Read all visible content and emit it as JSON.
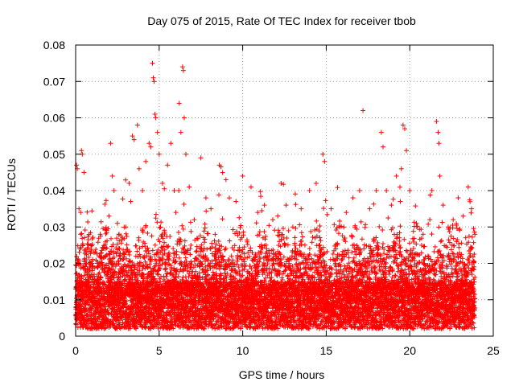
{
  "chart_data": {
    "type": "scatter",
    "title": "Day 075 of 2015, Rate Of TEC Index for receiver tbob",
    "xlabel": "GPS time / hours",
    "ylabel": "ROTI / TECUs",
    "xlim": [
      0,
      25
    ],
    "ylim": [
      0,
      0.08
    ],
    "xticks": [
      "0",
      "5",
      "10",
      "15",
      "20",
      "25"
    ],
    "yticks": [
      "0",
      "0.01",
      "0.02",
      "0.03",
      "0.04",
      "0.05",
      "0.06",
      "0.07",
      "0.08"
    ],
    "grid": true,
    "marker": "+",
    "color": "#ff0000",
    "x_extent_hours": [
      0,
      23.9
    ],
    "series": [
      {
        "points": [
          [
            0.05,
            0.047
          ],
          [
            0.1,
            0.046
          ],
          [
            0.2,
            0.035
          ],
          [
            0.3,
            0.034
          ],
          [
            0.35,
            0.051
          ],
          [
            0.4,
            0.05
          ],
          [
            0.5,
            0.045
          ],
          [
            0.3,
            0.028
          ],
          [
            0.4,
            0.025
          ],
          [
            0.6,
            0.02
          ],
          [
            0.8,
            0.015
          ],
          [
            1.0,
            0.018
          ],
          [
            1.3,
            0.02
          ],
          [
            1.5,
            0.016
          ],
          [
            2.0,
            0.033
          ],
          [
            2.1,
            0.053
          ],
          [
            2.2,
            0.044
          ],
          [
            2.3,
            0.04
          ],
          [
            2.5,
            0.031
          ],
          [
            2.6,
            0.028
          ],
          [
            2.8,
            0.027
          ],
          [
            3.0,
            0.03
          ],
          [
            3.2,
            0.042
          ],
          [
            3.3,
            0.037
          ],
          [
            3.4,
            0.055
          ],
          [
            3.5,
            0.054
          ],
          [
            3.7,
            0.058
          ],
          [
            3.8,
            0.046
          ],
          [
            4.0,
            0.04
          ],
          [
            4.2,
            0.048
          ],
          [
            4.4,
            0.053
          ],
          [
            4.5,
            0.052
          ],
          [
            4.6,
            0.075
          ],
          [
            4.65,
            0.071
          ],
          [
            4.7,
            0.07
          ],
          [
            4.75,
            0.061
          ],
          [
            4.8,
            0.06
          ],
          [
            4.9,
            0.056
          ],
          [
            5.0,
            0.05
          ],
          [
            5.2,
            0.042
          ],
          [
            5.5,
            0.047
          ],
          [
            5.7,
            0.053
          ],
          [
            5.9,
            0.04
          ],
          [
            6.0,
            0.034
          ],
          [
            6.2,
            0.064
          ],
          [
            6.3,
            0.056
          ],
          [
            6.4,
            0.074
          ],
          [
            6.45,
            0.073
          ],
          [
            6.5,
            0.06
          ],
          [
            6.6,
            0.05
          ],
          [
            6.8,
            0.041
          ],
          [
            7.1,
            0.032
          ],
          [
            7.5,
            0.049
          ],
          [
            7.8,
            0.038
          ],
          [
            8.1,
            0.035
          ],
          [
            8.6,
            0.047
          ],
          [
            9.0,
            0.043
          ],
          [
            9.2,
            0.038
          ],
          [
            9.6,
            0.037
          ],
          [
            10.0,
            0.044
          ],
          [
            10.5,
            0.041
          ],
          [
            10.9,
            0.034
          ],
          [
            11.3,
            0.036
          ],
          [
            11.8,
            0.032
          ],
          [
            12.3,
            0.042
          ],
          [
            12.6,
            0.036
          ],
          [
            13.0,
            0.03
          ],
          [
            13.5,
            0.035
          ],
          [
            14.0,
            0.04
          ],
          [
            14.4,
            0.042
          ],
          [
            14.8,
            0.05
          ],
          [
            14.9,
            0.048
          ],
          [
            15.3,
            0.035
          ],
          [
            15.8,
            0.03
          ],
          [
            16.2,
            0.034
          ],
          [
            16.6,
            0.038
          ],
          [
            17.0,
            0.04
          ],
          [
            17.2,
            0.062
          ],
          [
            17.6,
            0.035
          ],
          [
            18.0,
            0.04
          ],
          [
            18.3,
            0.056
          ],
          [
            18.4,
            0.052
          ],
          [
            18.6,
            0.04
          ],
          [
            18.9,
            0.036
          ],
          [
            19.2,
            0.044
          ],
          [
            19.5,
            0.046
          ],
          [
            19.6,
            0.058
          ],
          [
            19.7,
            0.057
          ],
          [
            19.8,
            0.051
          ],
          [
            20.0,
            0.04
          ],
          [
            20.4,
            0.031
          ],
          [
            20.8,
            0.028
          ],
          [
            21.2,
            0.032
          ],
          [
            21.6,
            0.059
          ],
          [
            21.7,
            0.056
          ],
          [
            21.75,
            0.053
          ],
          [
            21.8,
            0.044
          ],
          [
            22.0,
            0.036
          ],
          [
            22.3,
            0.03
          ],
          [
            22.6,
            0.032
          ],
          [
            22.9,
            0.038
          ],
          [
            23.2,
            0.033
          ],
          [
            23.5,
            0.041
          ],
          [
            23.7,
            0.035
          ],
          [
            23.9,
            0.028
          ]
        ]
      }
    ]
  }
}
